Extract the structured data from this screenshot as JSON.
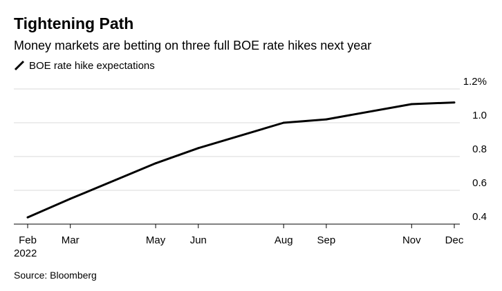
{
  "header": {
    "title": "Tightening Path",
    "subtitle": "Money markets are betting on three full BOE rate hikes next year"
  },
  "footer": {
    "source": "Source: Bloomberg"
  },
  "colors": {
    "line": "#000000",
    "grid": "#d9d9d9",
    "axis": "#000000",
    "text": "#000000"
  },
  "chart_data": {
    "type": "line",
    "title": "Tightening Path",
    "subtitle": "Money markets are betting on three full BOE rate hikes next year",
    "xlabel": "",
    "ylabel": "",
    "x": [
      "2022-02",
      "2022-03",
      "2022-05",
      "2022-06",
      "2022-08",
      "2022-09",
      "2022-11",
      "2022-12"
    ],
    "xlim": [
      "2022-02",
      "2022-12"
    ],
    "x_ticks": [
      {
        "x": "2022-02",
        "label": "Feb",
        "sublabel": "2022"
      },
      {
        "x": "2022-03",
        "label": "Mar"
      },
      {
        "x": "2022-05",
        "label": "May"
      },
      {
        "x": "2022-06",
        "label": "Jun"
      },
      {
        "x": "2022-08",
        "label": "Aug"
      },
      {
        "x": "2022-09",
        "label": "Sep"
      },
      {
        "x": "2022-11",
        "label": "Nov"
      },
      {
        "x": "2022-12",
        "label": "Dec"
      }
    ],
    "series": [
      {
        "name": "BOE rate hike expectations",
        "color": "#000000",
        "values": [
          0.44,
          0.55,
          0.76,
          0.85,
          1.0,
          1.02,
          1.11,
          1.12
        ]
      }
    ],
    "ylim": [
      0.4,
      1.2
    ],
    "y_ticks": [
      {
        "value": 0.4,
        "label": "0.4"
      },
      {
        "value": 0.6,
        "label": "0.6"
      },
      {
        "value": 0.8,
        "label": "0.8"
      },
      {
        "value": 1.0,
        "label": "1.0"
      },
      {
        "value": 1.2,
        "label": "1.2%"
      }
    ],
    "y_axis_side": "right",
    "grid": true,
    "legend": {
      "position": "top-left",
      "entries": [
        "BOE rate hike expectations"
      ]
    }
  }
}
